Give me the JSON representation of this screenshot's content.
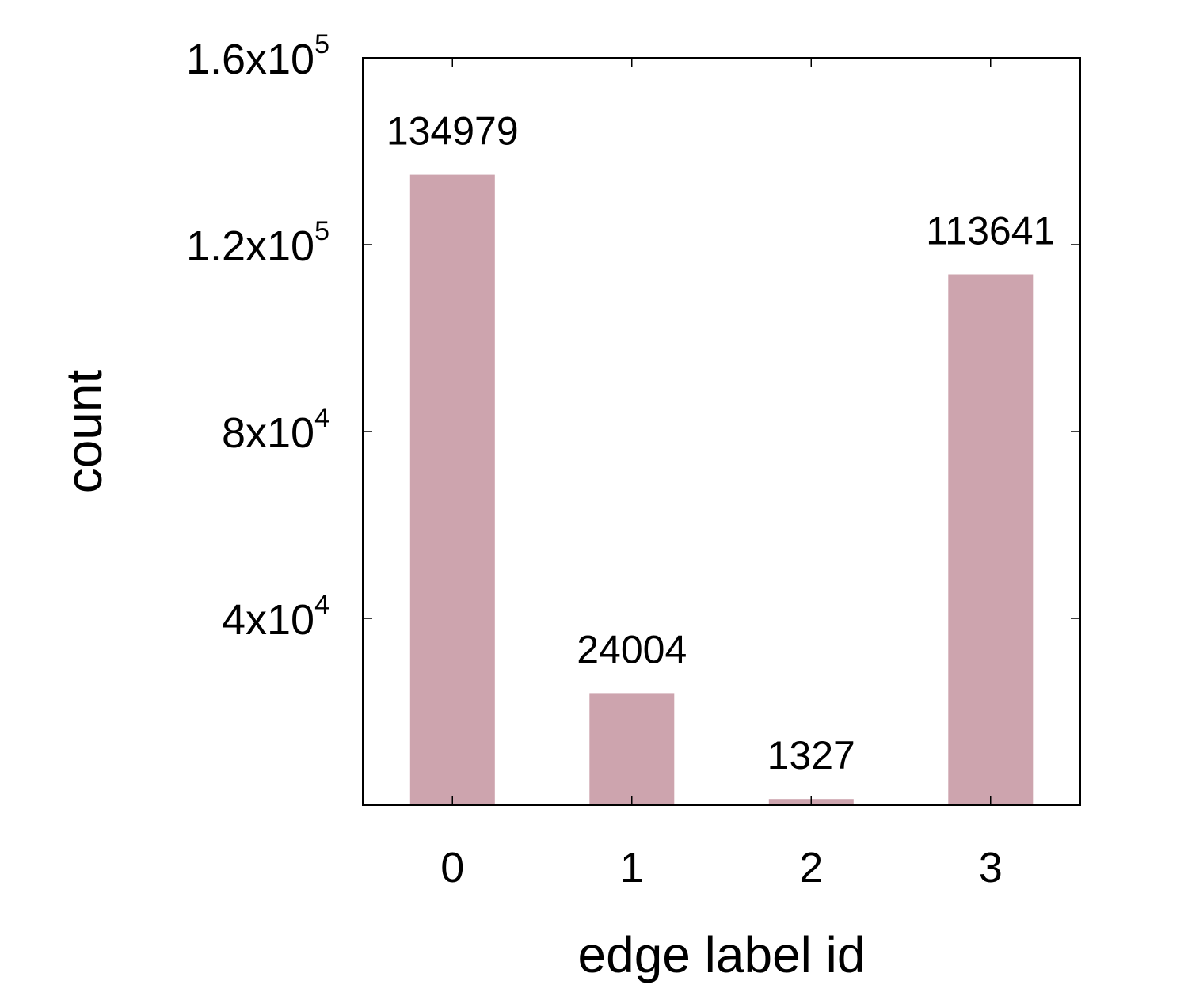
{
  "chart_data": {
    "type": "bar",
    "categories": [
      "0",
      "1",
      "2",
      "3"
    ],
    "values": [
      134979,
      24004,
      1327,
      113641
    ],
    "data_labels": [
      "134979",
      "24004",
      "1327",
      "113641"
    ],
    "xlabel": "edge label id",
    "ylabel": "count",
    "ylim": [
      0,
      160000
    ],
    "yticks": [
      {
        "value": 40000,
        "mantissa": "4x10",
        "exponent": "4"
      },
      {
        "value": 80000,
        "mantissa": "8x10",
        "exponent": "4"
      },
      {
        "value": 120000,
        "mantissa": "1.2x10",
        "exponent": "5"
      },
      {
        "value": 160000,
        "mantissa": "1.6x10",
        "exponent": "5"
      }
    ],
    "grid": false,
    "legend": "none",
    "bar_color": "#cda4ae"
  }
}
